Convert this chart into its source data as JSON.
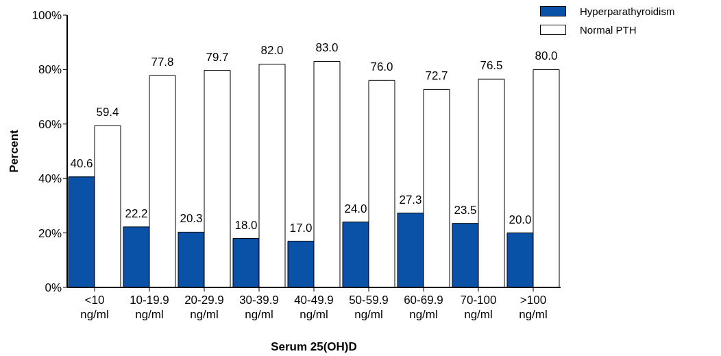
{
  "chart_data": {
    "type": "bar",
    "xlabel": "Serum 25(OH)D",
    "ylabel": "Percent",
    "categories": [
      "<10\nng/ml",
      "10-19.9\nng/ml",
      "20-29.9\nng/ml",
      "30-39.9\nng/ml",
      "40-49.9\nng/ml",
      "50-59.9\nng/ml",
      "60-69.9\nng/ml",
      "70-100\nng/ml",
      ">100\nng/ml"
    ],
    "series": [
      {
        "name": "Hyperparathyroidism",
        "color": "#0a52a8",
        "values": [
          40.6,
          22.2,
          20.3,
          18.0,
          17.0,
          24.0,
          27.3,
          23.5,
          20.0
        ],
        "value_labels": [
          "40.6",
          "22.2",
          "20.3",
          "18.0",
          "17.0",
          "24.0",
          "27.3",
          "23.5",
          "20.0"
        ]
      },
      {
        "name": "Normal PTH",
        "color": "#ffffff",
        "values": [
          59.4,
          77.8,
          79.7,
          82.0,
          83.0,
          76.0,
          72.7,
          76.5,
          80.0
        ],
        "value_labels": [
          "59.4",
          "77.8",
          "79.7",
          "82.0",
          "83.0",
          "76.0",
          "72.7",
          "76.5",
          "80.0"
        ]
      }
    ],
    "ylim": [
      0,
      100
    ],
    "yticks": [
      {
        "value": 0,
        "label": "0%"
      },
      {
        "value": 20,
        "label": "20%"
      },
      {
        "value": 40,
        "label": "40%"
      },
      {
        "value": 60,
        "label": "60%"
      },
      {
        "value": 80,
        "label": "80%"
      },
      {
        "value": 100,
        "label": "100%"
      }
    ],
    "legend": "top right",
    "grid": false
  }
}
